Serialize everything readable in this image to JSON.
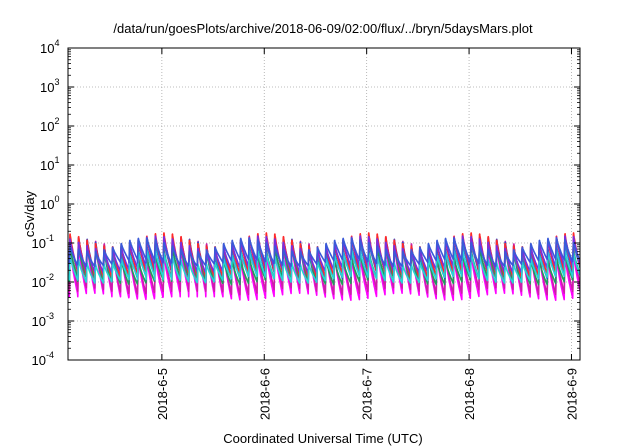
{
  "chart_data": {
    "type": "line",
    "title": "/data/run/goesPlots/archive/2018-06-09/02:00/flux/../bryn/5daysMars.plot",
    "xlabel": "Coordinated Universal Time (UTC)",
    "ylabel": "cSv/day",
    "y_scale": "log",
    "ylim": [
      0.0001,
      10000
    ],
    "y_ticks": [
      {
        "base": "10",
        "exp": "-4"
      },
      {
        "base": "10",
        "exp": "-3"
      },
      {
        "base": "10",
        "exp": "-2"
      },
      {
        "base": "10",
        "exp": "-1"
      },
      {
        "base": "10",
        "exp": "0"
      },
      {
        "base": "10",
        "exp": "1"
      },
      {
        "base": "10",
        "exp": "2"
      },
      {
        "base": "10",
        "exp": "3"
      },
      {
        "base": "10",
        "exp": "4"
      }
    ],
    "xlim": [
      "2018-06-04T02:00",
      "2018-06-09T02:00"
    ],
    "x_ticks": [
      "2018-6-5",
      "2018-6-6",
      "2018-6-7",
      "2018-6-8",
      "2018-6-9"
    ],
    "grid": true,
    "legend": "none",
    "pattern": {
      "description_period_hours": 2.0,
      "offset_hours": 0.3,
      "note": "sawtooth: sharp rise then decay each orbit"
    },
    "series": [
      {
        "color": "#ff00ff",
        "peak": 0.075,
        "trough": 0.0042
      },
      {
        "color": "#cc1fa8",
        "peak": 0.09,
        "trough": 0.0058
      },
      {
        "color": "#1f9e5a",
        "peak": 0.058,
        "trough": 0.0105
      },
      {
        "color": "#1f4fd4",
        "peak": 0.105,
        "trough": 0.0145
      },
      {
        "color": "#2f7ad9",
        "peak": 0.08,
        "trough": 0.0165
      },
      {
        "color": "#ff2a2a",
        "peak": 0.135,
        "trough": 0.016
      },
      {
        "color": "#7a2de0",
        "peak": 0.11,
        "trough": 0.021
      },
      {
        "color": "#26d4d4",
        "peak": 0.045,
        "trough": 0.0115
      },
      {
        "color": "#3a5ad8",
        "peak": 0.095,
        "trough": 0.031
      }
    ]
  }
}
